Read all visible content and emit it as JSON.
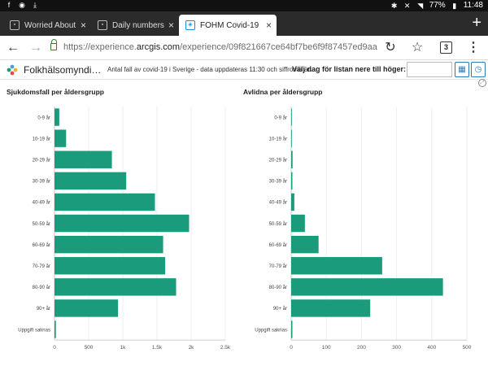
{
  "status": {
    "battery": "77%",
    "time": "11:48"
  },
  "tabs": [
    {
      "title": "Worried About",
      "active": false
    },
    {
      "title": "Daily numbers",
      "active": false
    },
    {
      "title": "FOHM Covid-19",
      "active": true
    }
  ],
  "urlbar": {
    "prefix": "https://experience.",
    "domain": "arcgis.com",
    "path": "/experience/09f821667ce64bf7be6f9f87457ed9aa",
    "tab_count": "3"
  },
  "header": {
    "app_name": "Folkhälsomyndi…",
    "description": "Antal fall av covid-19 i Sverige - data uppdateras 11:30 och siffrorna är…",
    "date_label": "Välj dag för listan nere till höger:",
    "date_value": ""
  },
  "colors": {
    "bar": "#1a9b7c",
    "axis": "#cccccc"
  },
  "chart_data": [
    {
      "type": "bar",
      "orientation": "horizontal",
      "title": "Sjukdomsfall per åldersgrupp",
      "categories": [
        "0-9 år",
        "10-19 år",
        "20-29 år",
        "30-39 år",
        "40-49 år",
        "50-59 år",
        "60-69 år",
        "70-79 år",
        "80-90 år",
        "90+ år",
        "Uppgift saknas"
      ],
      "values": [
        70,
        170,
        840,
        1050,
        1470,
        1970,
        1590,
        1620,
        1780,
        930,
        20
      ],
      "xlim": [
        0,
        2500
      ],
      "ticks": [
        0,
        500,
        1000,
        1500,
        2000,
        2500
      ],
      "tick_labels": [
        "0",
        "500",
        "1k",
        "1.5k",
        "2k",
        "2.5k"
      ],
      "grid": true
    },
    {
      "type": "bar",
      "orientation": "horizontal",
      "title": "Avlidna per åldersgrupp",
      "categories": [
        "0-9 år",
        "10-19 år",
        "20-29 år",
        "30-39 år",
        "40-49 år",
        "50-59 år",
        "60-69 år",
        "70-79 år",
        "80-90 år",
        "90+ år",
        "Uppgift saknas"
      ],
      "values": [
        0,
        0,
        4,
        3,
        9,
        39,
        78,
        259,
        432,
        225,
        1
      ],
      "xlim": [
        0,
        500
      ],
      "ticks": [
        0,
        100,
        200,
        300,
        400,
        500
      ],
      "tick_labels": [
        "0",
        "100",
        "200",
        "300",
        "400",
        "500"
      ],
      "grid": true
    }
  ]
}
